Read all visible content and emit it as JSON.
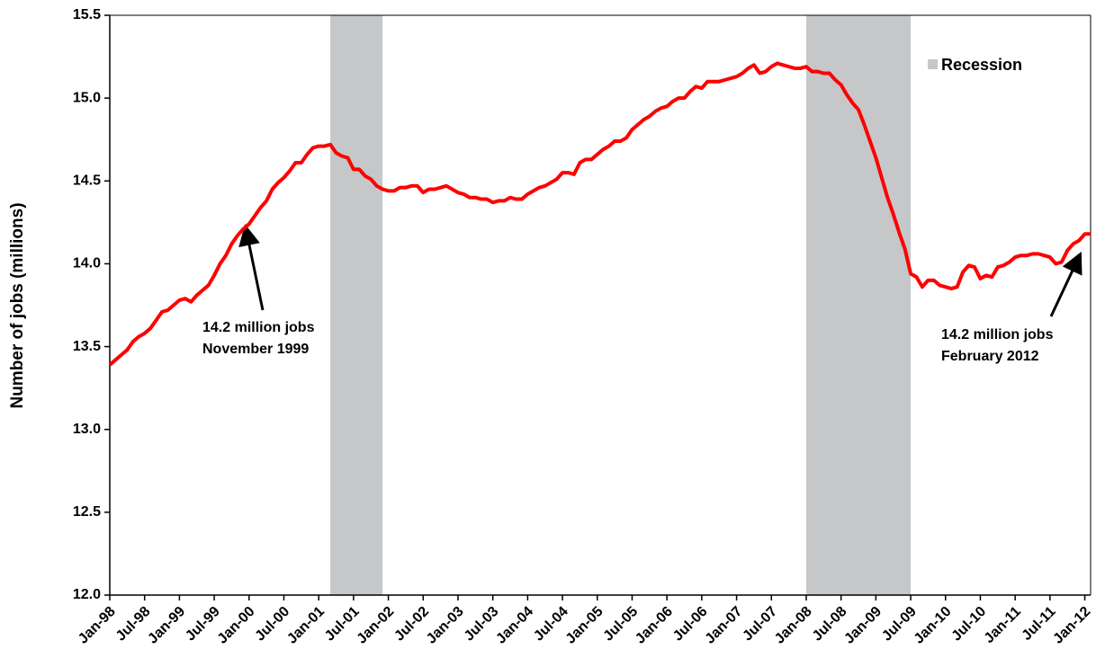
{
  "chart_data": {
    "type": "line",
    "y_label": "Number of jobs (millions)",
    "categories": [
      "Jan-98",
      null,
      null,
      null,
      null,
      null,
      "Jul-98",
      null,
      null,
      null,
      null,
      null,
      "Jan-99",
      null,
      null,
      null,
      null,
      null,
      "Jul-99",
      null,
      null,
      null,
      null,
      null,
      "Jan-00",
      null,
      null,
      null,
      null,
      null,
      "Jul-00",
      null,
      null,
      null,
      null,
      null,
      "Jan-01",
      null,
      null,
      null,
      null,
      null,
      "Jul-01",
      null,
      null,
      null,
      null,
      null,
      "Jan-02",
      null,
      null,
      null,
      null,
      null,
      "Jul-02",
      null,
      null,
      null,
      null,
      null,
      "Jan-03",
      null,
      null,
      null,
      null,
      null,
      "Jul-03",
      null,
      null,
      null,
      null,
      null,
      "Jan-04",
      null,
      null,
      null,
      null,
      null,
      "Jul-04",
      null,
      null,
      null,
      null,
      null,
      "Jan-05",
      null,
      null,
      null,
      null,
      null,
      "Jul-05",
      null,
      null,
      null,
      null,
      null,
      "Jan-06",
      null,
      null,
      null,
      null,
      null,
      "Jul-06",
      null,
      null,
      null,
      null,
      null,
      "Jan-07",
      null,
      null,
      null,
      null,
      null,
      "Jul-07",
      null,
      null,
      null,
      null,
      null,
      "Jan-08",
      null,
      null,
      null,
      null,
      null,
      "Jul-08",
      null,
      null,
      null,
      null,
      null,
      "Jan-09",
      null,
      null,
      null,
      null,
      null,
      "Jul-09",
      null,
      null,
      null,
      null,
      null,
      "Jan-10",
      null,
      null,
      null,
      null,
      null,
      "Jul-10",
      null,
      null,
      null,
      null,
      null,
      "Jan-11",
      null,
      null,
      null,
      null,
      null,
      "Jul-11",
      null,
      null,
      null,
      null,
      null,
      "Jan-12",
      null
    ],
    "values": [
      13.39,
      13.42,
      13.45,
      13.48,
      13.53,
      13.56,
      13.58,
      13.61,
      13.66,
      13.71,
      13.72,
      13.75,
      13.78,
      13.79,
      13.77,
      13.81,
      13.84,
      13.87,
      13.93,
      14.0,
      14.05,
      14.12,
      14.17,
      14.21,
      14.24,
      14.29,
      14.34,
      14.38,
      14.45,
      14.49,
      14.52,
      14.56,
      14.61,
      14.61,
      14.66,
      14.7,
      14.71,
      14.71,
      14.72,
      14.67,
      14.65,
      14.64,
      14.57,
      14.57,
      14.53,
      14.51,
      14.47,
      14.45,
      14.44,
      14.44,
      14.46,
      14.46,
      14.47,
      14.47,
      14.43,
      14.45,
      14.45,
      14.46,
      14.47,
      14.45,
      14.43,
      14.42,
      14.4,
      14.4,
      14.39,
      14.39,
      14.37,
      14.38,
      14.38,
      14.4,
      14.39,
      14.39,
      14.42,
      14.44,
      14.46,
      14.47,
      14.49,
      14.51,
      14.55,
      14.55,
      14.54,
      14.61,
      14.63,
      14.63,
      14.66,
      14.69,
      14.71,
      14.74,
      14.74,
      14.76,
      14.81,
      14.84,
      14.87,
      14.89,
      14.92,
      14.94,
      14.95,
      14.98,
      15.0,
      15.0,
      15.04,
      15.07,
      15.06,
      15.1,
      15.1,
      15.1,
      15.11,
      15.12,
      15.13,
      15.15,
      15.18,
      15.2,
      15.15,
      15.16,
      15.19,
      15.21,
      15.2,
      15.19,
      15.18,
      15.18,
      15.19,
      15.16,
      15.16,
      15.15,
      15.15,
      15.11,
      15.08,
      15.02,
      14.97,
      14.93,
      14.84,
      14.74,
      14.64,
      14.52,
      14.4,
      14.3,
      14.19,
      14.09,
      13.94,
      13.92,
      13.86,
      13.9,
      13.9,
      13.87,
      13.86,
      13.85,
      13.86,
      13.95,
      13.99,
      13.98,
      13.91,
      13.93,
      13.92,
      13.98,
      13.99,
      14.01,
      14.04,
      14.05,
      14.05,
      14.06,
      14.06,
      14.05,
      14.04,
      14.0,
      14.01,
      14.08,
      14.12,
      14.14,
      14.18,
      14.18
    ],
    "color": "#ff0000",
    "ylim": [
      12,
      15.5
    ],
    "yticks": [
      {
        "value": 12,
        "label": "12.0"
      },
      12.5,
      {
        "value": 13,
        "label": "13.0"
      },
      13.5,
      {
        "value": 14,
        "label": "14.0"
      },
      14.5,
      {
        "value": 15,
        "label": "15.0"
      },
      15.5
    ],
    "recession": {
      "name": "Recession",
      "color": "#c6c7c9",
      "ranges": [
        [
          38,
          47
        ],
        [
          120,
          138
        ]
      ]
    },
    "annotations": [
      [
        "14.2 million jobs",
        "November 1999"
      ],
      [
        "14.2 million jobs",
        "February 2012"
      ]
    ]
  }
}
